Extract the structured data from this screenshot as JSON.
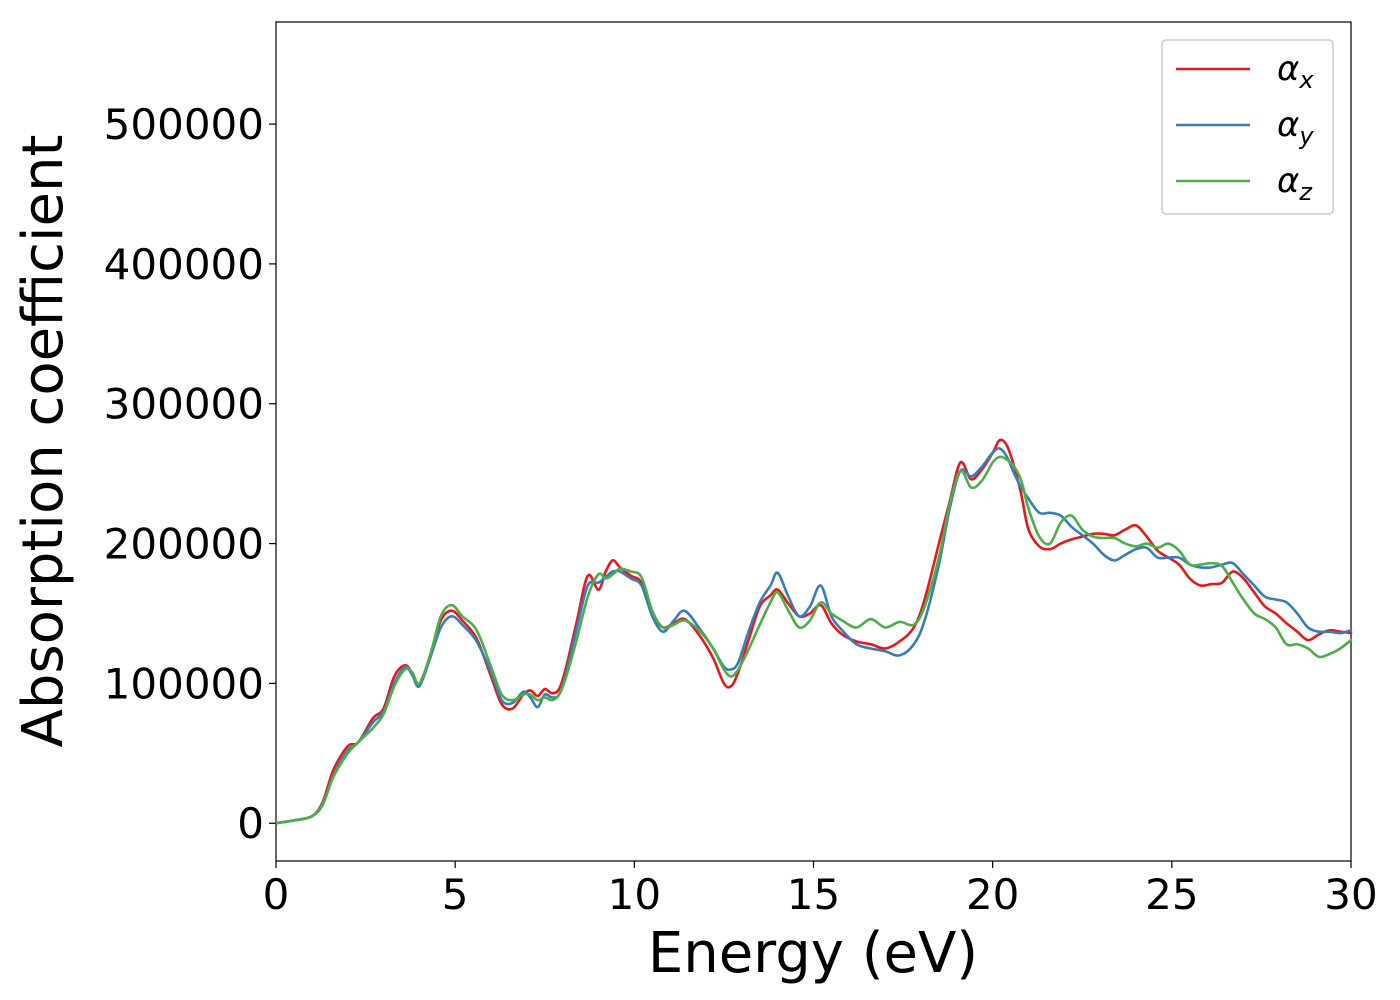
{
  "chart_data": {
    "type": "line",
    "title": "",
    "xlabel": "Energy (eV)",
    "ylabel": "Absorption coefficient",
    "xlim": [
      0,
      30
    ],
    "ylim": [
      -27000,
      573000
    ],
    "xticks": [
      0,
      5,
      10,
      15,
      20,
      25,
      30
    ],
    "yticks": [
      0,
      100000,
      200000,
      300000,
      400000,
      500000
    ],
    "grid": false,
    "legend_position": "top-right",
    "series": [
      {
        "name": "α",
        "subscript": "x",
        "color": "#e41a1c",
        "x": [
          0,
          0.5,
          1.0,
          1.3,
          1.6,
          2.0,
          2.3,
          2.7,
          3.0,
          3.3,
          3.6,
          3.8,
          4.0,
          4.3,
          4.6,
          4.9,
          5.2,
          5.6,
          6.0,
          6.3,
          6.6,
          6.9,
          7.1,
          7.3,
          7.5,
          7.7,
          7.9,
          8.1,
          8.4,
          8.7,
          9.0,
          9.2,
          9.4,
          9.6,
          9.9,
          10.2,
          10.5,
          10.8,
          11.1,
          11.4,
          11.8,
          12.2,
          12.5,
          12.7,
          12.9,
          13.2,
          13.5,
          13.8,
          14.0,
          14.3,
          14.6,
          14.9,
          15.2,
          15.5,
          15.8,
          16.2,
          16.6,
          17.0,
          17.4,
          17.8,
          18.1,
          18.5,
          18.8,
          19.1,
          19.4,
          19.7,
          20.0,
          20.2,
          20.4,
          20.6,
          20.8,
          21.0,
          21.3,
          21.6,
          21.9,
          22.2,
          22.5,
          22.8,
          23.1,
          23.4,
          23.7,
          24.0,
          24.3,
          24.6,
          24.9,
          25.2,
          25.5,
          25.8,
          26.1,
          26.4,
          26.7,
          27.0,
          27.3,
          27.6,
          27.9,
          28.2,
          28.5,
          28.8,
          29.1,
          29.4,
          29.7,
          30.0
        ],
        "y": [
          0,
          2000,
          5000,
          15000,
          38000,
          55000,
          58000,
          75000,
          82000,
          105000,
          113000,
          107000,
          98000,
          120000,
          145000,
          152000,
          145000,
          132000,
          105000,
          85000,
          82000,
          92000,
          95000,
          91000,
          96000,
          93000,
          96000,
          112000,
          145000,
          177000,
          167000,
          180000,
          188000,
          183000,
          177000,
          172000,
          150000,
          140000,
          143000,
          146000,
          135000,
          118000,
          100000,
          98000,
          108000,
          132000,
          155000,
          163000,
          167000,
          157000,
          148000,
          150000,
          156000,
          143000,
          135000,
          130000,
          128000,
          125000,
          130000,
          140000,
          160000,
          200000,
          230000,
          258000,
          246000,
          253000,
          265000,
          274000,
          270000,
          255000,
          235000,
          210000,
          198000,
          196000,
          200000,
          203000,
          205000,
          207000,
          207000,
          206000,
          210000,
          213000,
          205000,
          195000,
          190000,
          185000,
          175000,
          170000,
          171000,
          172000,
          180000,
          175000,
          165000,
          155000,
          150000,
          143000,
          137000,
          131000,
          135000,
          138000,
          137000,
          136000
        ]
      },
      {
        "name": "α",
        "subscript": "y",
        "color": "#377eb8",
        "x": [
          0,
          0.5,
          1.0,
          1.3,
          1.6,
          2.0,
          2.3,
          2.7,
          3.0,
          3.3,
          3.6,
          3.8,
          4.0,
          4.3,
          4.6,
          4.9,
          5.2,
          5.6,
          6.0,
          6.3,
          6.6,
          6.9,
          7.1,
          7.3,
          7.5,
          7.7,
          7.9,
          8.1,
          8.4,
          8.7,
          9.0,
          9.2,
          9.4,
          9.6,
          9.9,
          10.2,
          10.5,
          10.8,
          11.1,
          11.4,
          11.8,
          12.2,
          12.5,
          12.7,
          12.9,
          13.2,
          13.5,
          13.8,
          14.0,
          14.3,
          14.6,
          14.9,
          15.2,
          15.5,
          15.8,
          16.2,
          16.6,
          17.0,
          17.4,
          17.8,
          18.1,
          18.5,
          18.8,
          19.1,
          19.4,
          19.7,
          20.0,
          20.2,
          20.4,
          20.6,
          20.8,
          21.0,
          21.3,
          21.6,
          21.9,
          22.2,
          22.5,
          22.8,
          23.1,
          23.4,
          23.7,
          24.0,
          24.3,
          24.6,
          24.9,
          25.2,
          25.5,
          25.8,
          26.1,
          26.4,
          26.7,
          27.0,
          27.3,
          27.6,
          27.9,
          28.2,
          28.5,
          28.8,
          29.1,
          29.4,
          29.7,
          30.0
        ],
        "y": [
          0,
          2000,
          5000,
          14000,
          34000,
          52000,
          58000,
          72000,
          80000,
          100000,
          112000,
          106000,
          98000,
          118000,
          140000,
          148000,
          142000,
          130000,
          108000,
          88000,
          86000,
          94000,
          90000,
          83000,
          92000,
          90000,
          92000,
          108000,
          140000,
          170000,
          172000,
          176000,
          180000,
          180000,
          175000,
          170000,
          148000,
          137000,
          145000,
          152000,
          140000,
          125000,
          112000,
          110000,
          115000,
          138000,
          158000,
          170000,
          179000,
          162000,
          148000,
          155000,
          170000,
          148000,
          138000,
          128000,
          125000,
          123000,
          120000,
          128000,
          145000,
          185000,
          225000,
          252000,
          248000,
          255000,
          265000,
          268000,
          262000,
          250000,
          240000,
          232000,
          222000,
          222000,
          220000,
          212000,
          206000,
          200000,
          192000,
          188000,
          192000,
          196000,
          197000,
          190000,
          190000,
          190000,
          185000,
          183000,
          183000,
          185000,
          186000,
          178000,
          170000,
          162000,
          160000,
          158000,
          150000,
          140000,
          137000,
          137000,
          136000,
          138000
        ]
      },
      {
        "name": "α",
        "subscript": "z",
        "color": "#4daf4a",
        "x": [
          0,
          0.5,
          1.0,
          1.3,
          1.6,
          2.0,
          2.3,
          2.7,
          3.0,
          3.3,
          3.6,
          3.8,
          4.0,
          4.3,
          4.6,
          4.9,
          5.2,
          5.6,
          6.0,
          6.3,
          6.6,
          6.9,
          7.1,
          7.3,
          7.5,
          7.7,
          7.9,
          8.1,
          8.4,
          8.7,
          9.0,
          9.2,
          9.4,
          9.6,
          9.9,
          10.2,
          10.5,
          10.8,
          11.1,
          11.4,
          11.8,
          12.2,
          12.5,
          12.7,
          12.9,
          13.2,
          13.5,
          13.8,
          14.0,
          14.3,
          14.6,
          14.9,
          15.2,
          15.5,
          15.8,
          16.2,
          16.6,
          17.0,
          17.4,
          17.8,
          18.1,
          18.5,
          18.8,
          19.1,
          19.4,
          19.7,
          20.0,
          20.2,
          20.4,
          20.6,
          20.8,
          21.0,
          21.3,
          21.6,
          21.9,
          22.2,
          22.5,
          22.8,
          23.1,
          23.4,
          23.7,
          24.0,
          24.3,
          24.6,
          24.9,
          25.2,
          25.5,
          25.8,
          26.1,
          26.4,
          26.7,
          27.0,
          27.3,
          27.6,
          27.9,
          28.2,
          28.5,
          28.8,
          29.1,
          29.4,
          29.7,
          30.0
        ],
        "y": [
          0,
          2000,
          5000,
          13000,
          33000,
          50000,
          58000,
          68000,
          78000,
          98000,
          110000,
          108000,
          100000,
          120000,
          148000,
          156000,
          148000,
          138000,
          112000,
          92000,
          88000,
          92000,
          92000,
          88000,
          90000,
          88000,
          92000,
          105000,
          132000,
          162000,
          178000,
          175000,
          178000,
          182000,
          180000,
          176000,
          152000,
          140000,
          142000,
          145000,
          138000,
          125000,
          110000,
          105000,
          110000,
          125000,
          142000,
          158000,
          165000,
          152000,
          140000,
          145000,
          158000,
          150000,
          145000,
          140000,
          146000,
          140000,
          144000,
          142000,
          155000,
          190000,
          228000,
          252000,
          240000,
          245000,
          258000,
          262000,
          260000,
          255000,
          245000,
          225000,
          205000,
          200000,
          215000,
          220000,
          210000,
          205000,
          204000,
          204000,
          200000,
          198000,
          200000,
          197000,
          200000,
          195000,
          185000,
          185000,
          186000,
          184000,
          172000,
          160000,
          150000,
          146000,
          140000,
          128000,
          128000,
          125000,
          119000,
          121000,
          125000,
          131000
        ]
      }
    ]
  }
}
